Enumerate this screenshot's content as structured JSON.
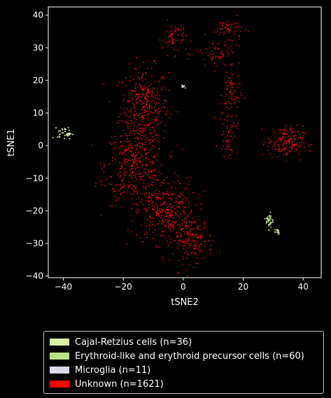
{
  "chart_data": {
    "type": "scatter",
    "xlabel": "tSNE2",
    "ylabel": "tSNE1",
    "xlim": [
      -45,
      46
    ],
    "ylim": [
      -40.5,
      42.5
    ],
    "xticks": [
      -40,
      -20,
      0,
      20,
      40
    ],
    "yticks": [
      -40,
      -30,
      -20,
      -10,
      0,
      10,
      20,
      30,
      40
    ],
    "grid": false,
    "legend_position": "bottom",
    "series": [
      {
        "name": "Cajal-Retzius cells (n=36)",
        "color": "#d9f0a3",
        "count": 36,
        "clusters": [
          {
            "cx": -39.5,
            "cy": 3.8,
            "sx": 1.2,
            "sy": 0.9,
            "n": 36
          }
        ]
      },
      {
        "name": "Erythroid-like and erythroid precursor cells (n=60)",
        "color": "#b8e186",
        "count": 60,
        "clusters": [
          {
            "cx": 28.8,
            "cy": -23.0,
            "sx": 0.6,
            "sy": 1.2,
            "n": 40
          },
          {
            "cx": 31.2,
            "cy": -26.3,
            "sx": 0.6,
            "sy": 0.5,
            "n": 20
          }
        ]
      },
      {
        "name": "Microglia (n=11)",
        "color": "#dadaeb",
        "count": 11,
        "clusters": [
          {
            "cx": 0.0,
            "cy": 18.2,
            "sx": 0.5,
            "sy": 0.3,
            "n": 11
          }
        ]
      },
      {
        "name": "Unknown (n=1621)",
        "color": "#ff0000",
        "count": 1621,
        "clusters": [
          {
            "cx": -13,
            "cy": 12,
            "sx": 4.0,
            "sy": 6.0,
            "n": 330
          },
          {
            "cx": -16,
            "cy": -6,
            "sx": 5.0,
            "sy": 6.0,
            "n": 320
          },
          {
            "cx": -6,
            "cy": -20,
            "sx": 5.0,
            "sy": 5.0,
            "n": 330
          },
          {
            "cx": 3,
            "cy": -29,
            "sx": 3.5,
            "sy": 3.5,
            "n": 160
          },
          {
            "cx": -3,
            "cy": 33,
            "sx": 2.0,
            "sy": 2.5,
            "n": 60
          },
          {
            "cx": 15,
            "cy": 36,
            "sx": 2.5,
            "sy": 1.5,
            "n": 50
          },
          {
            "cx": 12,
            "cy": 28,
            "sx": 4.0,
            "sy": 2.5,
            "n": 70
          },
          {
            "cx": 16,
            "cy": 16,
            "sx": 1.5,
            "sy": 3.5,
            "n": 60
          },
          {
            "cx": 15,
            "cy": 4,
            "sx": 1.5,
            "sy": 3.5,
            "n": 60
          },
          {
            "cx": 34,
            "cy": 1,
            "sx": 3.0,
            "sy": 2.5,
            "n": 160
          },
          {
            "cx": -22,
            "cy": -12,
            "sx": 3.0,
            "sy": 3.0,
            "n": 21
          }
        ]
      }
    ]
  }
}
